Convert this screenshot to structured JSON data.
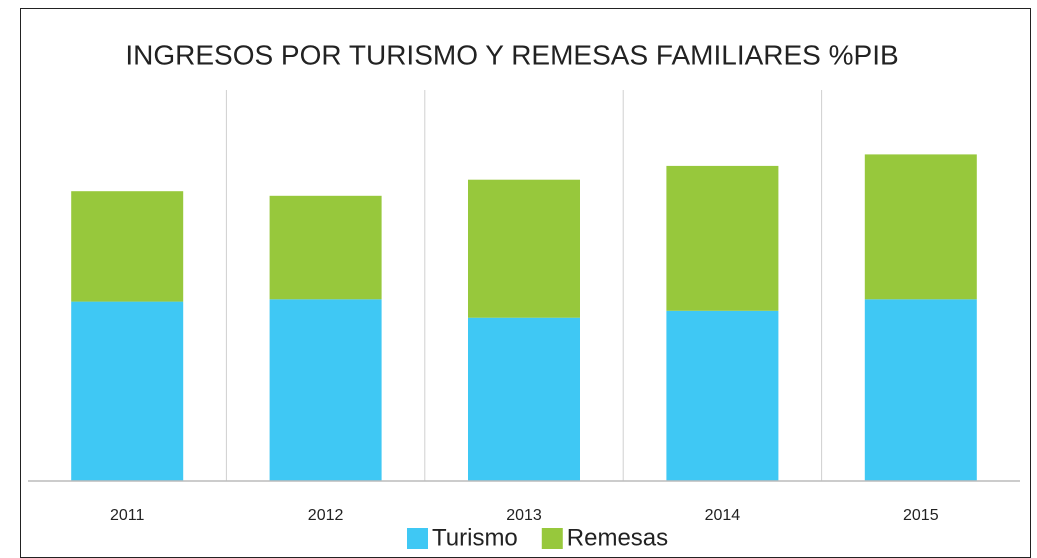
{
  "chart_data": {
    "type": "bar",
    "stacked": true,
    "title": "INGRESOS POR TURISMO Y REMESAS FAMILIARES %PIB",
    "categories": [
      "2011",
      "2012",
      "2013",
      "2014",
      "2015"
    ],
    "series": [
      {
        "name": "Turismo",
        "color": "#3fc8f4",
        "values": [
          7.8,
          7.9,
          7.1,
          7.4,
          7.9
        ]
      },
      {
        "name": "Remesas",
        "color": "#97c83c",
        "values": [
          4.8,
          4.5,
          6.0,
          6.3,
          6.3
        ]
      }
    ],
    "ylim": [
      0,
      17
    ],
    "legend": "bottom"
  }
}
